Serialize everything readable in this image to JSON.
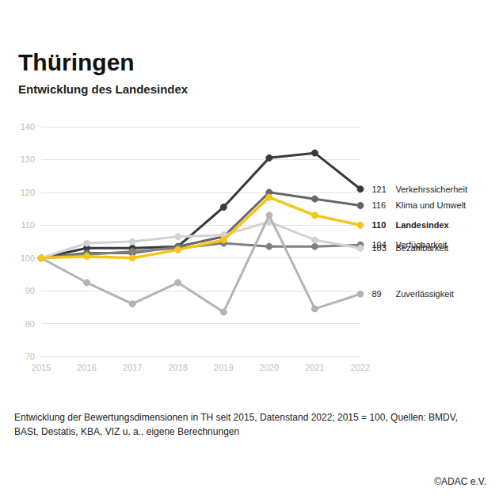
{
  "chart_data": {
    "type": "line",
    "title": "Thüringen",
    "subtitle": "Entwicklung des Landesindex",
    "caption": "Entwicklung der Bewertungsdimensionen in TH seit 2015, Datenstand 2022; 2015 = 100, Quellen: BMDV, BASt, Destatis, KBA, VIZ u. a., eigene Berechnungen",
    "source": "©ADAC e.V.",
    "categories": [
      "2015",
      "2016",
      "2017",
      "2018",
      "2019",
      "2020",
      "2021",
      "2022"
    ],
    "series": [
      {
        "name": "Verkehrssicherheit",
        "color": "#3a3a3a",
        "marker": "circle",
        "line_style": "solid",
        "values": [
          100,
          103,
          103,
          103.5,
          115.5,
          130.5,
          132,
          121
        ]
      },
      {
        "name": "Klima und Umwelt",
        "color": "#666666",
        "marker": "circle",
        "line_style": "solid",
        "values": [
          100,
          101.5,
          101.5,
          103.5,
          106.5,
          120,
          118,
          116
        ]
      },
      {
        "name": "Verfügbarkeit",
        "color": "#808080",
        "marker": "circle",
        "line_style": "solid",
        "values": [
          100,
          101,
          102,
          103,
          104.5,
          103.5,
          103.5,
          104
        ]
      },
      {
        "name": "Bezahlbarkeit",
        "color": "#d2d2d2",
        "marker": "circle",
        "line_style": "solid",
        "values": [
          100,
          104.5,
          105,
          106.5,
          107,
          111,
          105.5,
          103
        ]
      },
      {
        "name": "Zuverlässigkeit",
        "color": "#b4b4b4",
        "marker": "circle",
        "line_style": "solid",
        "values": [
          100,
          92.5,
          86,
          92.5,
          83.5,
          113,
          84.5,
          89
        ]
      },
      {
        "name": "Landesindex",
        "color": "#f5c518",
        "marker": "circle",
        "line_style": "bold",
        "values": [
          100,
          100.5,
          100,
          102.5,
          105.5,
          118.5,
          113,
          110
        ]
      }
    ],
    "ylim": [
      70,
      140
    ],
    "yticks": [
      70,
      80,
      90,
      100,
      110,
      120,
      130,
      140
    ],
    "grid": true,
    "data_labels": true
  }
}
